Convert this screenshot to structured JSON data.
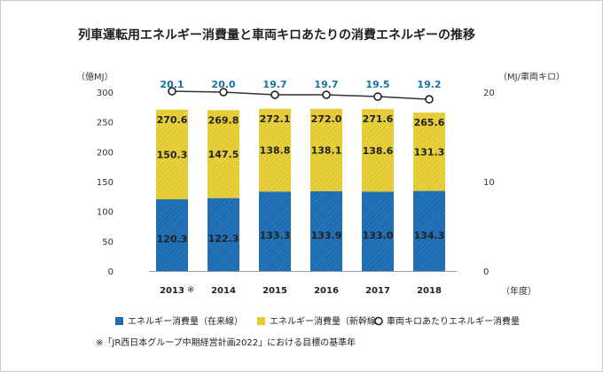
{
  "chart_data": {
    "type": "bar",
    "title": "列車運転用エネルギー消費量と車両キロあたりの消費エネルギーの推移",
    "categories": [
      "2013",
      "2014",
      "2015",
      "2016",
      "2017",
      "2018"
    ],
    "category_mark": "※",
    "series": [
      {
        "name": "エネルギー消費量（在来線）",
        "values": [
          120.3,
          122.3,
          133.3,
          133.9,
          133.0,
          134.3
        ],
        "color": "#1f6cb0"
      },
      {
        "name": "エネルギー消費量（新幹線）",
        "values": [
          150.3,
          147.5,
          138.8,
          138.1,
          138.6,
          131.3
        ],
        "color": "#e8d03c"
      }
    ],
    "totals": [
      "270.6",
      "269.8",
      "272.1",
      "272.0",
      "271.6",
      "265.6"
    ],
    "line_series": {
      "name": "車両キロあたりエネルギー消費量",
      "values": [
        20.1,
        20.0,
        19.7,
        19.7,
        19.5,
        19.2
      ],
      "color": "#1a6ea8"
    },
    "ylabel_left": "（億MJ）",
    "ylabel_right": "（MJ/車両キロ）",
    "xlabel": "（年度）",
    "ylim_left": [
      0,
      300
    ],
    "yticks_left": [
      0,
      50,
      100,
      150,
      200,
      250,
      300
    ],
    "ylim_right": [
      0,
      20
    ],
    "yticks_right": [
      0,
      10,
      20
    ],
    "note": "※「JR西日本グループ中期経営計画2022」における目標の基準年"
  }
}
